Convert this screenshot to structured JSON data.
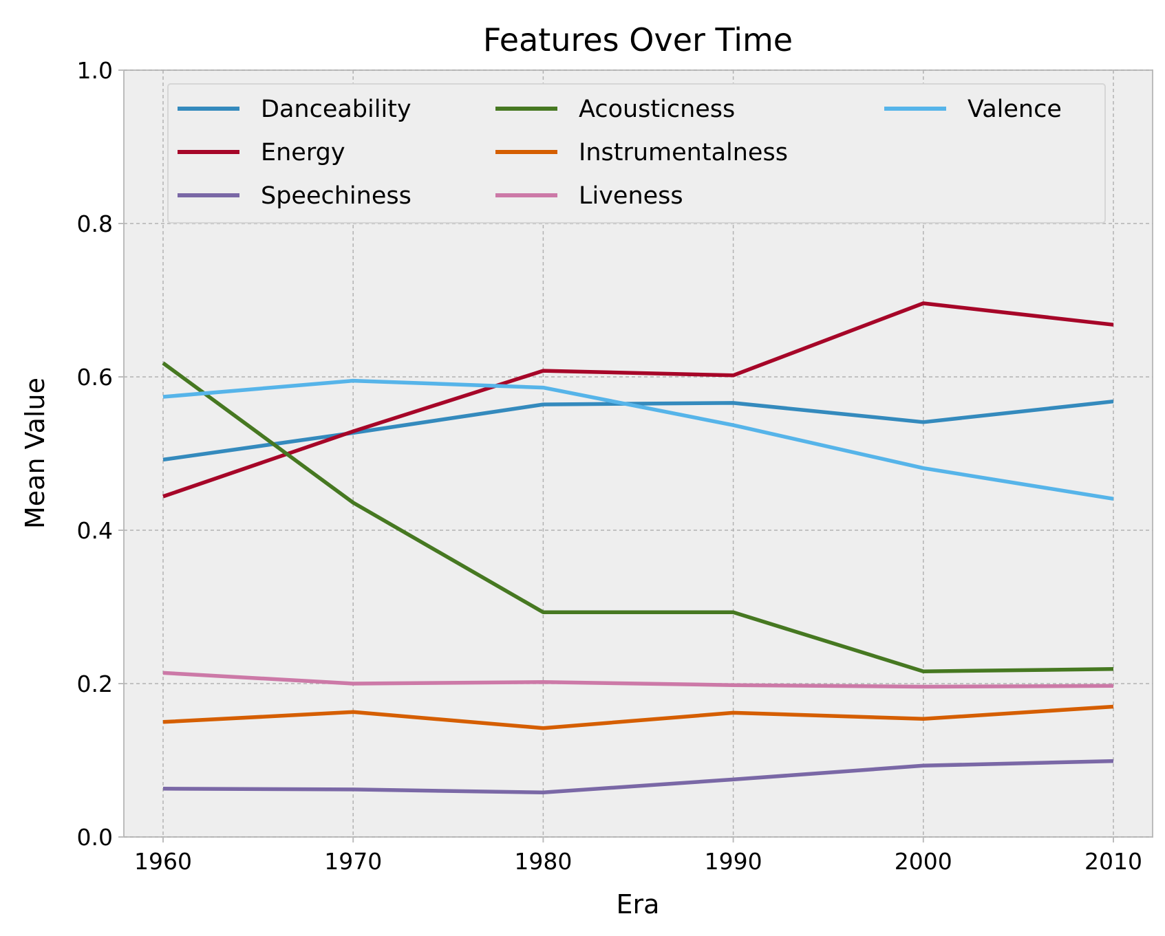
{
  "chart_data": {
    "type": "line",
    "title": "Features Over Time",
    "xlabel": "Era",
    "ylabel": "Mean Value",
    "x": [
      1960,
      1970,
      1980,
      1990,
      2000,
      2010
    ],
    "xticks": [
      "1960",
      "1970",
      "1980",
      "1990",
      "2000",
      "2010"
    ],
    "ylim": [
      0,
      1
    ],
    "yticks": [
      "0.0",
      "0.2",
      "0.4",
      "0.6",
      "0.8",
      "1.0"
    ],
    "grid": true,
    "legend_position": "top",
    "legend_columns": 3,
    "series": [
      {
        "name": "Danceability",
        "color": "#348ABD",
        "values": [
          0.492,
          0.527,
          0.564,
          0.566,
          0.541,
          0.568
        ]
      },
      {
        "name": "Energy",
        "color": "#A60628",
        "values": [
          0.444,
          0.529,
          0.608,
          0.602,
          0.696,
          0.668
        ]
      },
      {
        "name": "Speechiness",
        "color": "#7A68A6",
        "values": [
          0.063,
          0.062,
          0.058,
          0.075,
          0.093,
          0.099
        ]
      },
      {
        "name": "Acousticness",
        "color": "#467821",
        "values": [
          0.618,
          0.436,
          0.293,
          0.293,
          0.216,
          0.219
        ]
      },
      {
        "name": "Instrumentalness",
        "color": "#D55E00",
        "values": [
          0.15,
          0.163,
          0.142,
          0.162,
          0.154,
          0.17
        ]
      },
      {
        "name": "Liveness",
        "color": "#CC79A7",
        "values": [
          0.214,
          0.2,
          0.202,
          0.198,
          0.196,
          0.197
        ]
      },
      {
        "name": "Valence",
        "color": "#56B4E9",
        "values": [
          0.574,
          0.595,
          0.586,
          0.537,
          0.481,
          0.441
        ]
      }
    ]
  }
}
